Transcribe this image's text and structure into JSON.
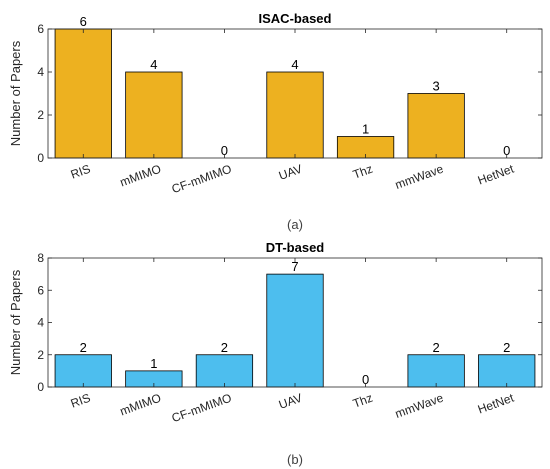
{
  "chart_data": [
    {
      "type": "bar",
      "title": "ISAC-based",
      "ylabel": "Number of Papers",
      "xlabel": "",
      "caption": "(a)",
      "categories": [
        "RIS",
        "mMIMO",
        "CF-mMIMO",
        "UAV",
        "Thz",
        "mmWave",
        "HetNet"
      ],
      "values": [
        6,
        4,
        0,
        4,
        1,
        3,
        0
      ],
      "data_labels": [
        "6",
        "4",
        "0",
        "4",
        "1",
        "3",
        "0"
      ],
      "ylim": [
        0,
        6
      ],
      "yticks": [
        0,
        2,
        4,
        6
      ],
      "ytick_labels": [
        "0",
        "2",
        "4",
        "6"
      ],
      "bar_color": "#EDB120",
      "grid": false,
      "legend": "none"
    },
    {
      "type": "bar",
      "title": "DT-based",
      "ylabel": "Number of Papers",
      "xlabel": "",
      "caption": "(b)",
      "categories": [
        "RIS",
        "mMIMO",
        "CF-mMIMO",
        "UAV",
        "Thz",
        "mmWave",
        "HetNet"
      ],
      "values": [
        2,
        1,
        2,
        7,
        0,
        2,
        2
      ],
      "data_labels": [
        "2",
        "1",
        "2",
        "7",
        "0",
        "2",
        "2"
      ],
      "ylim": [
        0,
        8
      ],
      "yticks": [
        0,
        2,
        4,
        6,
        8
      ],
      "ytick_labels": [
        "0",
        "2",
        "4",
        "6",
        "8"
      ],
      "bar_color": "#4DBEEE",
      "grid": false,
      "legend": "none"
    }
  ]
}
